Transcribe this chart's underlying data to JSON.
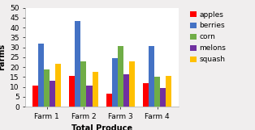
{
  "categories": [
    "Farm 1",
    "Farm 2",
    "Farm 3",
    "Farm 4"
  ],
  "series": {
    "apples": [
      10.5,
      15.5,
      6.5,
      12.0
    ],
    "berries": [
      32.0,
      43.5,
      24.5,
      30.5
    ],
    "corn": [
      19.0,
      23.0,
      30.5,
      15.0
    ],
    "melons": [
      13.0,
      10.5,
      16.5,
      9.5
    ],
    "squash": [
      21.5,
      17.5,
      23.0,
      15.5
    ]
  },
  "colors": {
    "apples": "#FF0000",
    "berries": "#4472C4",
    "corn": "#70AD47",
    "melons": "#7030A0",
    "squash": "#FFC000"
  },
  "xlabel": "Total Produce",
  "ylabel": "Farms",
  "ylim": [
    0,
    50
  ],
  "yticks": [
    0,
    5,
    10,
    15,
    20,
    25,
    30,
    35,
    40,
    45,
    50
  ],
  "background_color": "#F0EEEE",
  "plot_bg": "#FFFFFF",
  "axis_fontsize": 7,
  "tick_fontsize": 6.5,
  "legend_fontsize": 6.5
}
